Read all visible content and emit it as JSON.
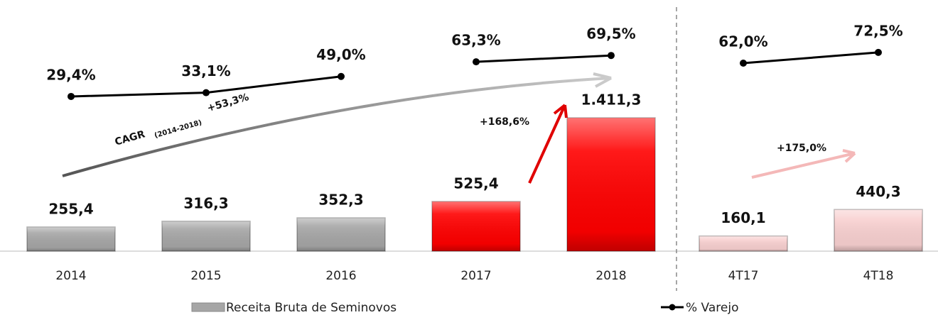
{
  "chart_data": {
    "type": "bar",
    "categories": [
      "2014",
      "2015",
      "2016",
      "2017",
      "2018",
      "4T17",
      "4T18"
    ],
    "series": [
      {
        "name": "Receita Bruta de Seminovos",
        "type": "bar",
        "colors": [
          "#a6a6a6",
          "#a6a6a6",
          "#a6a6a6",
          "#ff0000",
          "#ff0000",
          "#f8d0d0",
          "#f8d0d0"
        ],
        "values": [
          255.4,
          316.3,
          352.3,
          525.4,
          1411.3,
          160.1,
          440.3
        ],
        "value_labels": [
          "255,4",
          "316,3",
          "352,3",
          "525,4",
          "1.411,3",
          "160,1",
          "440,3"
        ]
      },
      {
        "name": "% Varejo",
        "type": "line",
        "color": "#000000",
        "values": [
          29.4,
          33.1,
          49.0,
          63.3,
          69.5,
          62.0,
          72.5
        ],
        "value_labels": [
          "29,4%",
          "33,1%",
          "49,0%",
          "63,3%",
          "69,5%",
          "62,0%",
          "72,5%"
        ]
      }
    ],
    "annotations": {
      "cagr_label": "CAGR",
      "cagr_period": "(2014-2018)",
      "cagr_value": "+53,3%",
      "growth_annual": "+168,6%",
      "growth_quarter": "+175,0%"
    }
  }
}
